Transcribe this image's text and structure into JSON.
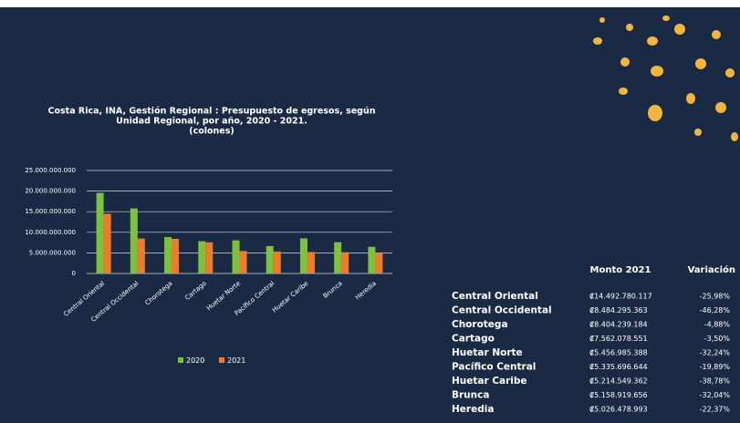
{
  "chart_data": {
    "type": "bar",
    "title": [
      "Costa Rica, INA, Gestión Regional : Presupuesto de egresos, según",
      "Unidad Regional, por año, 2020 - 2021.",
      "(colones)"
    ],
    "categories": [
      "Central Oriental",
      "Central Occidental",
      "Chorotega",
      "Cartago",
      "Huetar Norte",
      "Pacífico Central",
      "Huetar Caribe",
      "Brunca",
      "Heredia"
    ],
    "series": [
      {
        "name": "2020",
        "color": "#7cc23a",
        "values": [
          19580000000,
          15790000000,
          8835000000,
          7836000000,
          8053000000,
          6660000000,
          8518000000,
          7591000000,
          6475000000
        ]
      },
      {
        "name": "2021",
        "color": "#ef7b2a",
        "values": [
          14492780117,
          8484295363,
          8404239184,
          7562078551,
          5456985388,
          5335696644,
          5214549362,
          5158919656,
          5026478993
        ]
      }
    ],
    "ylim": [
      0,
      25000000000
    ],
    "yticks": [
      0,
      {
        "value": 5000000000,
        "label": "5.000.000.000"
      },
      {
        "value": 10000000000,
        "label": "10.000.000.000"
      },
      {
        "value": 15000000000,
        "label": "15.000.000.000"
      },
      {
        "value": 20000000000,
        "label": "20.000.000.000"
      },
      {
        "value": 25000000000,
        "label": "25.000.000.000"
      }
    ],
    "grid": true
  },
  "table": {
    "header": [
      "Monto 2021",
      "Variación"
    ],
    "rows": [
      [
        "Central Oriental",
        "₡14.492.780.117",
        "-25,98%"
      ],
      [
        "Central  Occidental",
        "₡8.484.295.363",
        "-46,28%"
      ],
      [
        "Chorotega",
        "₡8.404.239.184",
        "-4,88%"
      ],
      [
        "Cartago",
        "₡7.562.078.551",
        "-3,50%"
      ],
      [
        "Huetar  Norte",
        "₡5.456.985.388",
        "-32,24%"
      ],
      [
        "Pacífico Central",
        "₡5.335.696.644",
        "-19,89%"
      ],
      [
        "Huetar Caribe",
        "₡5.214.549.362",
        "-38,78%"
      ],
      [
        "Brunca",
        "₡5.158.919.656",
        "-32,04%"
      ],
      [
        "Heredia",
        "₡5.026.478.993",
        "-22,37%"
      ]
    ]
  }
}
